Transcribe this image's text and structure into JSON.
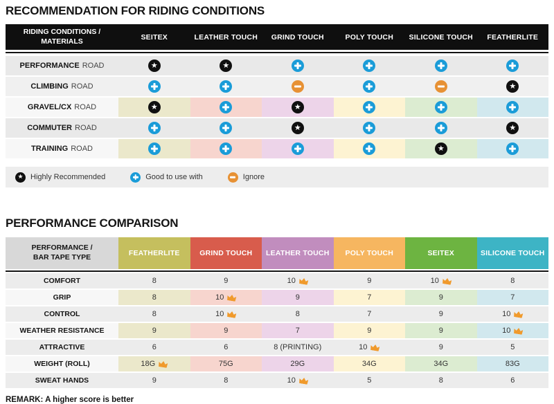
{
  "theme": {
    "star_color": "#101010",
    "plus_color": "#1a9cd8",
    "minus_color": "#e79134",
    "crown_color": "#f09a2c",
    "col_tints": [
      "#ebe8cb",
      "#f7d5ce",
      "#edd4e9",
      "#fdf3d2",
      "#dcecd1",
      "#d1e8ee"
    ]
  },
  "section1": {
    "title": "RECOMMENDATION FOR RIDING CONDITIONS",
    "table": {
      "corner_header_line1": "RIDING CONDITIONS /",
      "corner_header_line2": "MATERIALS",
      "columns": [
        "SEITEX",
        "LEATHER TOUCH",
        "GRIND TOUCH",
        "POLY TOUCH",
        "SILICONE TOUCH",
        "FEATHERLITE"
      ],
      "rows": [
        {
          "label_bold": "PERFORMANCE",
          "label_rest": "ROAD",
          "tinted": false,
          "cells": [
            "star",
            "star",
            "plus",
            "plus",
            "plus",
            "plus"
          ]
        },
        {
          "label_bold": "CLIMBING",
          "label_rest": "ROAD",
          "tinted": false,
          "cells": [
            "plus",
            "plus",
            "minus",
            "plus",
            "minus",
            "star"
          ]
        },
        {
          "label_bold": "GRAVEL/CX",
          "label_rest": "ROAD",
          "tinted": true,
          "cells": [
            "star",
            "plus",
            "star",
            "plus",
            "plus",
            "plus"
          ]
        },
        {
          "label_bold": "COMMUTER",
          "label_rest": "ROAD",
          "tinted": false,
          "cells": [
            "plus",
            "plus",
            "star",
            "plus",
            "plus",
            "star"
          ]
        },
        {
          "label_bold": "TRAINING",
          "label_rest": "ROAD",
          "tinted": true,
          "cells": [
            "plus",
            "plus",
            "plus",
            "plus",
            "star",
            "plus"
          ]
        }
      ]
    },
    "legend": [
      {
        "icon": "star",
        "label": "Highly Recommended"
      },
      {
        "icon": "plus",
        "label": "Good to use with"
      },
      {
        "icon": "minus",
        "label": "Ignore"
      }
    ]
  },
  "section2": {
    "title": "PERFORMANCE COMPARISON",
    "table": {
      "corner_header_line1": "PERFORMANCE /",
      "corner_header_line2": "BAR TAPE TYPE",
      "columns": [
        {
          "label": "FEATHERLITE",
          "color": "#c5bf5e"
        },
        {
          "label": "GRIND TOUCH",
          "color": "#d85c4c"
        },
        {
          "label": "LEATHER TOUCH",
          "color": "#c18dbe"
        },
        {
          "label": "POLY TOUCH",
          "color": "#f6b660"
        },
        {
          "label": "SEITEX",
          "color": "#6db441"
        },
        {
          "label": "SILICONE TOUCH",
          "color": "#3db4c5"
        }
      ],
      "rows": [
        {
          "label": "COMFORT",
          "tinted": false,
          "cells": [
            {
              "value": "8",
              "crown": false
            },
            {
              "value": "9",
              "crown": false
            },
            {
              "value": "10",
              "crown": true
            },
            {
              "value": "9",
              "crown": false
            },
            {
              "value": "10",
              "crown": true
            },
            {
              "value": "8",
              "crown": false
            }
          ]
        },
        {
          "label": "GRIP",
          "tinted": true,
          "cells": [
            {
              "value": "8",
              "crown": false
            },
            {
              "value": "10",
              "crown": true
            },
            {
              "value": "9",
              "crown": false
            },
            {
              "value": "7",
              "crown": false
            },
            {
              "value": "9",
              "crown": false
            },
            {
              "value": "7",
              "crown": false
            }
          ]
        },
        {
          "label": "CONTROL",
          "tinted": false,
          "cells": [
            {
              "value": "8",
              "crown": false
            },
            {
              "value": "10",
              "crown": true
            },
            {
              "value": "8",
              "crown": false
            },
            {
              "value": "7",
              "crown": false
            },
            {
              "value": "9",
              "crown": false
            },
            {
              "value": "10",
              "crown": true
            }
          ]
        },
        {
          "label": "WEATHER RESISTANCE",
          "tinted": true,
          "cells": [
            {
              "value": "9",
              "crown": false
            },
            {
              "value": "9",
              "crown": false
            },
            {
              "value": "7",
              "crown": false
            },
            {
              "value": "9",
              "crown": false
            },
            {
              "value": "9",
              "crown": false
            },
            {
              "value": "10",
              "crown": true
            }
          ]
        },
        {
          "label": "ATTRACTIVE",
          "tinted": false,
          "cells": [
            {
              "value": "6",
              "crown": false
            },
            {
              "value": "6",
              "crown": false
            },
            {
              "value": "8 (PRINTING)",
              "crown": false
            },
            {
              "value": "10",
              "crown": true
            },
            {
              "value": "9",
              "crown": false
            },
            {
              "value": "5",
              "crown": false
            }
          ]
        },
        {
          "label": "WEIGHT (ROLL)",
          "tinted": true,
          "cells": [
            {
              "value": "18G",
              "crown": true
            },
            {
              "value": "75G",
              "crown": false
            },
            {
              "value": "29G",
              "crown": false
            },
            {
              "value": "34G",
              "crown": false
            },
            {
              "value": "34G",
              "crown": false
            },
            {
              "value": "83G",
              "crown": false
            }
          ]
        },
        {
          "label": "SWEAT HANDS",
          "tinted": false,
          "cells": [
            {
              "value": "9",
              "crown": false
            },
            {
              "value": "8",
              "crown": false
            },
            {
              "value": "10",
              "crown": true
            },
            {
              "value": "5",
              "crown": false
            },
            {
              "value": "8",
              "crown": false
            },
            {
              "value": "6",
              "crown": false
            }
          ]
        }
      ]
    },
    "remark": "REMARK: A higher score is better"
  },
  "chart_data": [
    {
      "type": "table",
      "title": "RECOMMENDATION FOR RIDING CONDITIONS",
      "columns": [
        "SEITEX",
        "LEATHER TOUCH",
        "GRIND TOUCH",
        "POLY TOUCH",
        "SILICONE TOUCH",
        "FEATHERLITE"
      ],
      "rows": [
        {
          "label": "PERFORMANCE ROAD",
          "values": [
            "highly_recommended",
            "highly_recommended",
            "good_to_use_with",
            "good_to_use_with",
            "good_to_use_with",
            "good_to_use_with"
          ]
        },
        {
          "label": "CLIMBING ROAD",
          "values": [
            "good_to_use_with",
            "good_to_use_with",
            "ignore",
            "good_to_use_with",
            "ignore",
            "highly_recommended"
          ]
        },
        {
          "label": "GRAVEL/CX ROAD",
          "values": [
            "highly_recommended",
            "good_to_use_with",
            "highly_recommended",
            "good_to_use_with",
            "good_to_use_with",
            "good_to_use_with"
          ]
        },
        {
          "label": "COMMUTER ROAD",
          "values": [
            "good_to_use_with",
            "good_to_use_with",
            "highly_recommended",
            "good_to_use_with",
            "good_to_use_with",
            "highly_recommended"
          ]
        },
        {
          "label": "TRAINING ROAD",
          "values": [
            "good_to_use_with",
            "good_to_use_with",
            "good_to_use_with",
            "good_to_use_with",
            "highly_recommended",
            "good_to_use_with"
          ]
        }
      ],
      "legend": [
        "Highly Recommended = black star",
        "Good to use with = blue plus",
        "Ignore = orange minus"
      ]
    },
    {
      "type": "table",
      "title": "PERFORMANCE COMPARISON",
      "columns": [
        "FEATHERLITE",
        "GRIND TOUCH",
        "LEATHER TOUCH",
        "POLY TOUCH",
        "SEITEX",
        "SILICONE TOUCH"
      ],
      "rows": [
        {
          "label": "COMFORT",
          "values": [
            8,
            9,
            10,
            9,
            10,
            8
          ],
          "best": [
            "LEATHER TOUCH",
            "SEITEX"
          ]
        },
        {
          "label": "GRIP",
          "values": [
            8,
            10,
            9,
            7,
            9,
            7
          ],
          "best": [
            "GRIND TOUCH"
          ]
        },
        {
          "label": "CONTROL",
          "values": [
            8,
            10,
            8,
            7,
            9,
            10
          ],
          "best": [
            "GRIND TOUCH",
            "SILICONE TOUCH"
          ]
        },
        {
          "label": "WEATHER RESISTANCE",
          "values": [
            9,
            9,
            7,
            9,
            9,
            10
          ],
          "best": [
            "SILICONE TOUCH"
          ]
        },
        {
          "label": "ATTRACTIVE",
          "values": [
            6,
            6,
            "8 (PRINTING)",
            10,
            9,
            5
          ],
          "best": [
            "POLY TOUCH"
          ]
        },
        {
          "label": "WEIGHT (ROLL)",
          "values": [
            "18G",
            "75G",
            "29G",
            "34G",
            "34G",
            "83G"
          ],
          "best": [
            "FEATHERLITE"
          ]
        },
        {
          "label": "SWEAT HANDS",
          "values": [
            9,
            8,
            10,
            5,
            8,
            6
          ],
          "best": [
            "LEATHER TOUCH"
          ]
        }
      ],
      "note": "REMARK: A higher score is better"
    }
  ]
}
